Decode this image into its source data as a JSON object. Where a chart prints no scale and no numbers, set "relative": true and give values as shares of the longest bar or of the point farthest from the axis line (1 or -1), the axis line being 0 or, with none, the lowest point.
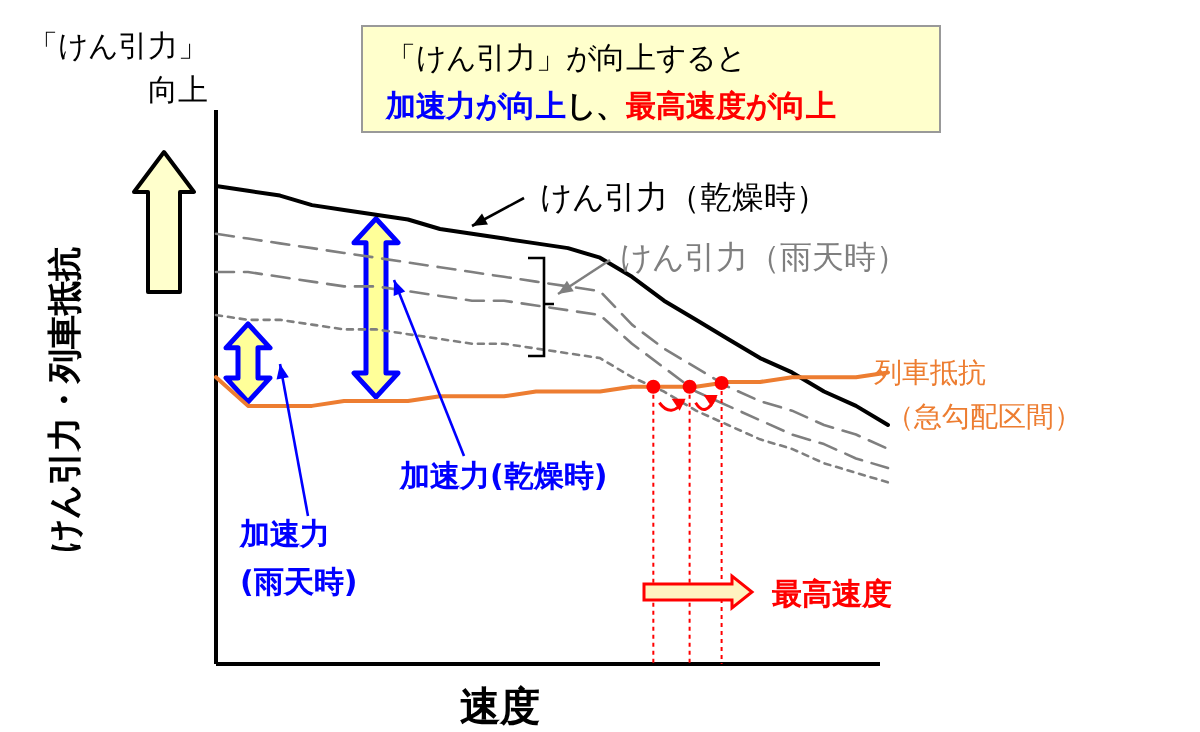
{
  "chart_data": {
    "type": "line",
    "relative": true,
    "xlabel": "速度",
    "ylabel": "けん引力・列車抵抗",
    "categories": [
      null,
      null,
      null,
      null,
      null,
      null,
      null,
      null,
      null,
      null,
      null,
      null,
      null,
      null,
      null,
      null,
      null,
      null,
      null,
      null,
      null,
      null
    ],
    "series": [
      {
        "name": "けん引力（乾燥時）",
        "color": "#000000",
        "line_style": "solid",
        "values": [
          1.0,
          0.99,
          0.98,
          0.96,
          0.95,
          0.94,
          0.93,
          0.91,
          0.9,
          0.89,
          0.88,
          0.87,
          0.85,
          0.81,
          0.76,
          0.72,
          0.68,
          0.64,
          0.61,
          0.57,
          0.54,
          0.5
        ]
      },
      {
        "name": "けん引力（雨天時）",
        "color": "#7f7f7f",
        "line_style": "dashed",
        "values": [
          0.9,
          0.89,
          0.88,
          0.87,
          0.86,
          0.85,
          0.84,
          0.83,
          0.82,
          0.81,
          0.8,
          0.79,
          0.78,
          0.71,
          0.66,
          0.62,
          0.58,
          0.55,
          0.53,
          0.5,
          0.48,
          0.45
        ]
      },
      {
        "color": "#7f7f7f",
        "line_style": "dashed",
        "values": [
          0.82,
          0.82,
          0.81,
          0.8,
          0.79,
          0.79,
          0.78,
          0.77,
          0.76,
          0.76,
          0.75,
          0.74,
          0.73,
          0.67,
          0.62,
          0.57,
          0.54,
          0.51,
          0.48,
          0.46,
          0.43,
          0.41
        ]
      },
      {
        "color": "#7f7f7f",
        "line_style": "dotted",
        "values": [
          0.73,
          0.72,
          0.72,
          0.71,
          0.7,
          0.7,
          0.69,
          0.68,
          0.67,
          0.67,
          0.66,
          0.65,
          0.64,
          0.6,
          0.57,
          0.53,
          0.5,
          0.47,
          0.45,
          0.42,
          0.4,
          0.38
        ]
      },
      {
        "name": "列車抵抗（急勾配区間）",
        "color": "#ed7d31",
        "line_style": "solid",
        "values": [
          0.6,
          0.54,
          0.54,
          0.54,
          0.55,
          0.55,
          0.55,
          0.56,
          0.56,
          0.56,
          0.57,
          0.57,
          0.57,
          0.58,
          0.58,
          0.58,
          0.59,
          0.59,
          0.6,
          0.6,
          0.6,
          0.61
        ]
      }
    ],
    "annotations": [
      "「けん引力」が向上すると",
      "加速力が向上",
      "し、",
      "最高速度が向上",
      "「けん引力」向上",
      "加速力(乾燥時)",
      "加速力(雨天時)",
      "最高速度"
    ],
    "legend": "top right"
  }
}
